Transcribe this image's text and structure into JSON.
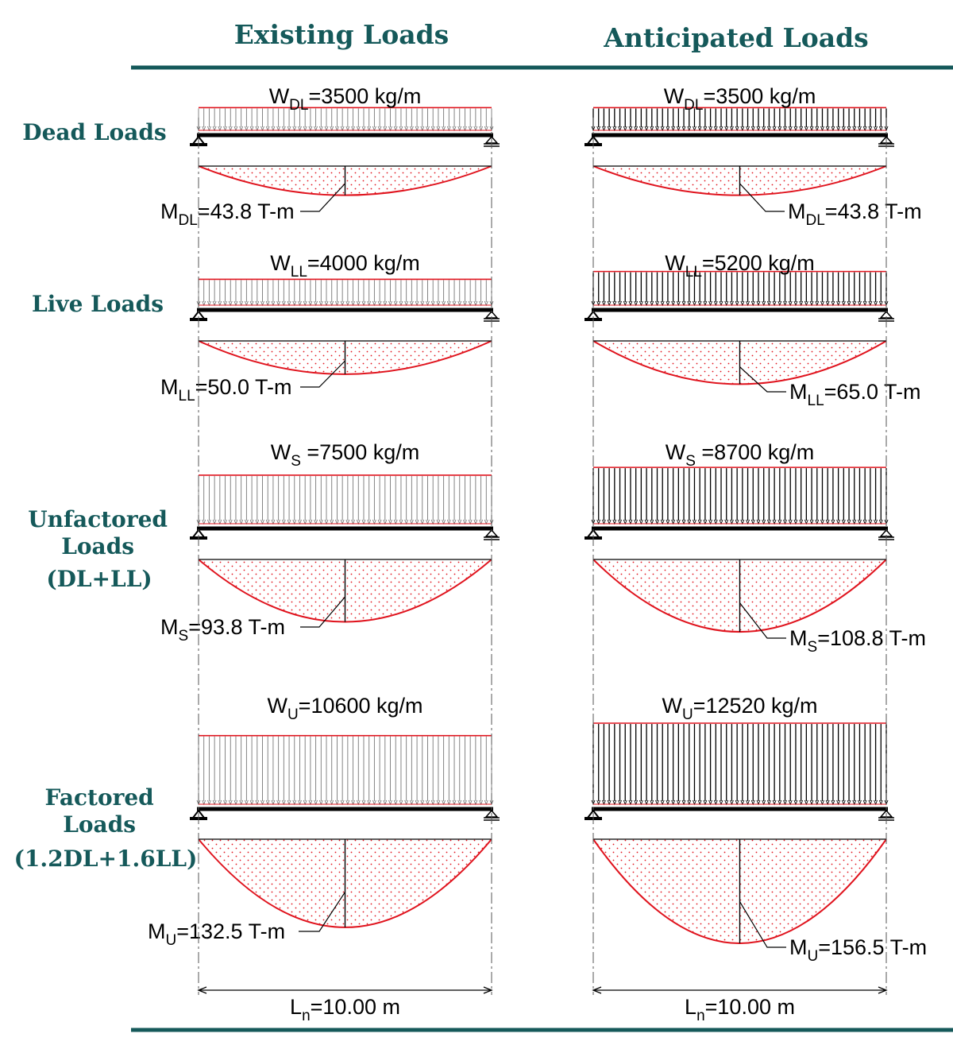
{
  "columns": [
    {
      "heading": "Existing Loads"
    },
    {
      "heading": "Anticipated Loads"
    }
  ],
  "rows": [
    {
      "heading_lines": [
        "Dead Loads"
      ]
    },
    {
      "heading_lines": [
        "Live Loads"
      ]
    },
    {
      "heading_lines": [
        "Unfactored",
        "Loads",
        "(DL+LL)"
      ]
    },
    {
      "heading_lines": [
        "Factored",
        "Loads",
        "(1.2DL+1.6LL)"
      ]
    }
  ],
  "panels": [
    [
      {
        "load": {
          "symbol": "W",
          "sub": "DL",
          "text": "=3500 kg/m"
        },
        "w": 3500,
        "moment": {
          "symbol": "M",
          "sub": "DL",
          "text": "=43.8 T-m"
        },
        "m": 43.8
      },
      {
        "load": {
          "symbol": "W",
          "sub": "DL",
          "text": "=3500 kg/m"
        },
        "w": 3500,
        "moment": {
          "symbol": "M",
          "sub": "DL",
          "text": "=43.8 T-m"
        },
        "m": 43.8
      }
    ],
    [
      {
        "load": {
          "symbol": "W",
          "sub": "LL",
          "text": "=4000 kg/m"
        },
        "w": 4000,
        "moment": {
          "symbol": "M",
          "sub": "LL",
          "text": "=50.0 T-m"
        },
        "m": 50.0
      },
      {
        "load": {
          "symbol": "W",
          "sub": "LL",
          "text": "=5200 kg/m"
        },
        "w": 5200,
        "moment": {
          "symbol": "M",
          "sub": "LL",
          "text": "=65.0 T-m"
        },
        "m": 65.0
      }
    ],
    [
      {
        "load": {
          "symbol": "W",
          "sub": "S",
          "text": " =7500 kg/m"
        },
        "w": 7500,
        "moment": {
          "symbol": "M",
          "sub": "S",
          "text": "=93.8 T-m"
        },
        "m": 93.8
      },
      {
        "load": {
          "symbol": "W",
          "sub": "S",
          "text": " =8700 kg/m"
        },
        "w": 8700,
        "moment": {
          "symbol": "M",
          "sub": "S",
          "text": "=108.8 T-m"
        },
        "m": 108.8
      }
    ],
    [
      {
        "load": {
          "symbol": "W",
          "sub": "U",
          "text": "=10600 kg/m"
        },
        "w": 10600,
        "moment": {
          "symbol": "M",
          "sub": "U",
          "text": "=132.5 T-m"
        },
        "m": 132.5
      },
      {
        "load": {
          "symbol": "W",
          "sub": "U",
          "text": "=12520 kg/m"
        },
        "w": 12520,
        "moment": {
          "symbol": "M",
          "sub": "U",
          "text": "=156.5 T-m"
        },
        "m": 156.5
      }
    ]
  ],
  "span": [
    {
      "symbol": "L",
      "sub": "n",
      "text": "=10.00 m"
    },
    {
      "symbol": "L",
      "sub": "n",
      "text": "=10.00 m"
    }
  ],
  "colors": {
    "heading": "#15595a",
    "rule": "#15595a",
    "moment_diagram": "#e0141e",
    "load_top": "#e0141e",
    "beam": "#000000",
    "dimension": "#555555"
  }
}
